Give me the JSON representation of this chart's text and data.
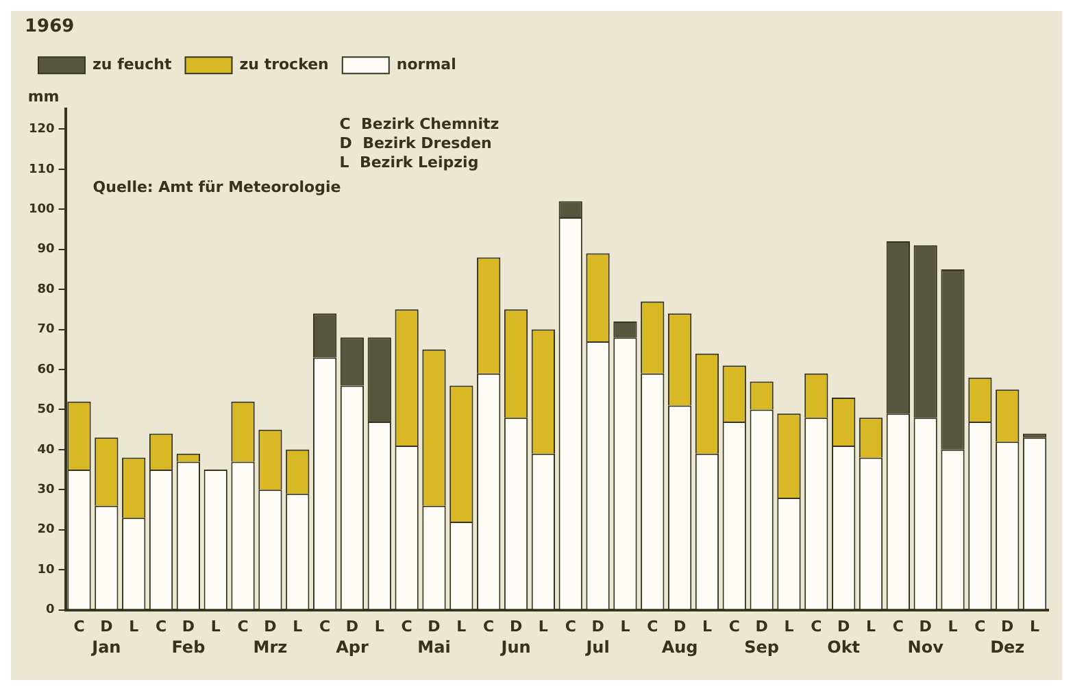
{
  "chart_data": {
    "type": "bar",
    "title": "1969",
    "ylabel": "mm",
    "stacked": true,
    "categories": [
      "C",
      "D",
      "L",
      "C",
      "D",
      "L",
      "C",
      "D",
      "L",
      "C",
      "D",
      "L",
      "C",
      "D",
      "L",
      "C",
      "D",
      "L",
      "C",
      "D",
      "L",
      "C",
      "D",
      "L",
      "C",
      "D",
      "L",
      "C",
      "D",
      "L",
      "C",
      "D",
      "L",
      "C",
      "D",
      "L"
    ],
    "series": [
      {
        "name": "normal",
        "color": "#fdfcf6",
        "values": [
          35,
          26,
          23,
          35,
          37,
          35,
          37,
          30,
          29,
          63,
          56,
          47,
          41,
          26,
          22,
          59,
          48,
          39,
          98,
          67,
          68,
          59,
          51,
          39,
          47,
          50,
          28,
          48,
          41,
          38,
          49,
          48,
          40,
          47,
          42,
          43
        ]
      },
      {
        "name": "zu trocken",
        "color": "#d8b825",
        "values": [
          17,
          17,
          15,
          9,
          2,
          null,
          15,
          15,
          11,
          null,
          null,
          null,
          34,
          39,
          34,
          29,
          27,
          31,
          null,
          22,
          null,
          18,
          23,
          25,
          14,
          7,
          21,
          11,
          12,
          10,
          null,
          null,
          null,
          11,
          13,
          null
        ]
      },
      {
        "name": "zu feucht",
        "color": "#56563e",
        "values": [
          null,
          null,
          null,
          null,
          null,
          null,
          null,
          null,
          null,
          11,
          12,
          21,
          null,
          null,
          null,
          null,
          null,
          null,
          4,
          null,
          4,
          null,
          null,
          null,
          null,
          null,
          null,
          null,
          null,
          null,
          43,
          43,
          45,
          null,
          null,
          1
        ]
      }
    ],
    "ylim": [
      0,
      125
    ],
    "yticks": [
      0,
      10,
      20,
      30,
      40,
      50,
      60,
      70,
      80,
      90,
      100,
      110,
      120
    ],
    "grid": false,
    "legend": "top left",
    "annotations": [
      "Jan",
      "Feb",
      "Mrz",
      "Apr",
      "Mai",
      "Jun",
      "Jul",
      "Aug",
      "Sep",
      "Okt",
      "Nov",
      "Dez",
      "C  Bezirk Chemnitz",
      "D  Bezirk Dresden",
      "L  Bezirk Leipzig",
      "Quelle: Amt für Meteorologie"
    ]
  }
}
